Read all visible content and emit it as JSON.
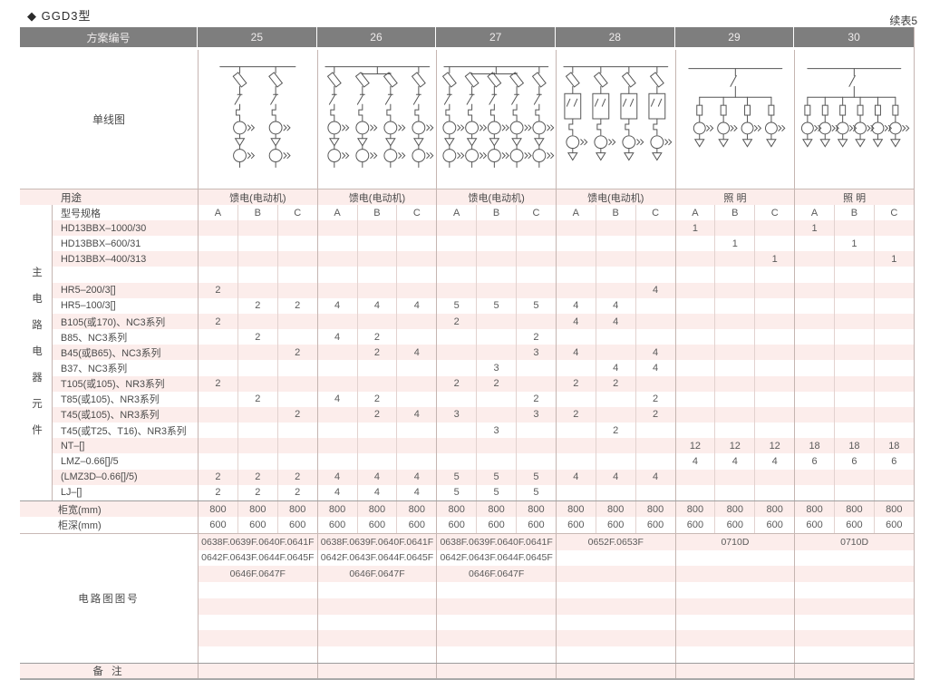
{
  "page": {
    "title": "◆ GGD3型",
    "continuation_note": "续表5"
  },
  "colors": {
    "header_bg": "#7e7e7e",
    "stripe_pink": "#fcedeb",
    "grid_line": "#c5b5b1",
    "text": "#4a4a4a"
  },
  "table": {
    "header_label": "方案编号",
    "schemes": [
      "25",
      "26",
      "27",
      "28",
      "29",
      "30"
    ],
    "diagram_row_label": "单线图",
    "diagrams": [
      {
        "scheme": "25",
        "style": "motor-feeder",
        "branches": 2
      },
      {
        "scheme": "26",
        "style": "motor-feeder",
        "branches": 4
      },
      {
        "scheme": "27",
        "style": "motor-feeder",
        "branches": 5
      },
      {
        "scheme": "28",
        "style": "contactor-feeder",
        "branches": 4
      },
      {
        "scheme": "29",
        "style": "lighting",
        "branches": 4
      },
      {
        "scheme": "30",
        "style": "lighting",
        "branches": 6
      }
    ],
    "usage_label": "用途",
    "usage_values": [
      "馈电(电动机)",
      "馈电(电动机)",
      "馈电(电动机)",
      "馈电(电动机)",
      "照 明",
      "照 明"
    ],
    "spec_label": "型号规格",
    "subcols": [
      "A",
      "B",
      "C"
    ],
    "side_label": "主电路电器元件",
    "component_rows": [
      {
        "label": "HD13BBX–1000/30",
        "values": [
          "",
          "",
          "",
          "",
          "",
          "",
          "",
          "",
          "",
          "",
          "",
          "",
          "1",
          "",
          "",
          "1",
          "",
          ""
        ]
      },
      {
        "label": "HD13BBX–600/31",
        "values": [
          "",
          "",
          "",
          "",
          "",
          "",
          "",
          "",
          "",
          "",
          "",
          "",
          "",
          "1",
          "",
          "",
          "1",
          ""
        ]
      },
      {
        "label": "HD13BBX–400/313",
        "values": [
          "",
          "",
          "",
          "",
          "",
          "",
          "",
          "",
          "",
          "",
          "",
          "",
          "",
          "",
          "1",
          "",
          "",
          "1"
        ]
      },
      {
        "label": "",
        "values": [
          "",
          "",
          "",
          "",
          "",
          "",
          "",
          "",
          "",
          "",
          "",
          "",
          "",
          "",
          "",
          "",
          "",
          ""
        ]
      },
      {
        "label": "HR5–200/3[]",
        "values": [
          "2",
          "",
          "",
          "",
          "",
          "",
          "",
          "",
          "",
          "",
          "",
          "4",
          "",
          "",
          "",
          "",
          "",
          ""
        ]
      },
      {
        "label": "HR5–100/3[]",
        "values": [
          "",
          "2",
          "2",
          "4",
          "4",
          "4",
          "5",
          "5",
          "5",
          "4",
          "4",
          "",
          "",
          "",
          "",
          "",
          "",
          ""
        ]
      },
      {
        "label": "B105(或170)、NC3系列",
        "values": [
          "2",
          "",
          "",
          "",
          "",
          "",
          "2",
          "",
          "",
          "4",
          "4",
          "",
          "",
          "",
          "",
          "",
          "",
          ""
        ]
      },
      {
        "label": "B85、NC3系列",
        "values": [
          "",
          "2",
          "",
          "4",
          "2",
          "",
          "",
          "",
          "2",
          "",
          "",
          "",
          "",
          "",
          "",
          "",
          "",
          ""
        ]
      },
      {
        "label": "B45(或B65)、NC3系列",
        "values": [
          "",
          "",
          "2",
          "",
          "2",
          "4",
          "",
          "",
          "3",
          "4",
          "",
          "4",
          "",
          "",
          "",
          "",
          "",
          ""
        ]
      },
      {
        "label": "B37、NC3系列",
        "values": [
          "",
          "",
          "",
          "",
          "",
          "",
          "",
          "3",
          "",
          "",
          "4",
          "4",
          "",
          "",
          "",
          "",
          "",
          ""
        ]
      },
      {
        "label": "T105(或105)、NR3系列",
        "values": [
          "2",
          "",
          "",
          "",
          "",
          "",
          "2",
          "2",
          "",
          "2",
          "2",
          "",
          "",
          "",
          "",
          "",
          "",
          ""
        ]
      },
      {
        "label": "T85(或105)、NR3系列",
        "values": [
          "",
          "2",
          "",
          "4",
          "2",
          "",
          "",
          "",
          "2",
          "",
          "",
          "2",
          "",
          "",
          "",
          "",
          "",
          ""
        ]
      },
      {
        "label": "T45(或105)、NR3系列",
        "values": [
          "",
          "",
          "2",
          "",
          "2",
          "4",
          "3",
          "",
          "3",
          "2",
          "",
          "2",
          "",
          "",
          "",
          "",
          "",
          ""
        ]
      },
      {
        "label": "T45(或T25、T16)、NR3系列",
        "values": [
          "",
          "",
          "",
          "",
          "",
          "",
          "",
          "3",
          "",
          "",
          "2",
          "",
          "",
          "",
          "",
          "",
          "",
          ""
        ]
      },
      {
        "label": "NT–[]",
        "values": [
          "",
          "",
          "",
          "",
          "",
          "",
          "",
          "",
          "",
          "",
          "",
          "",
          "12",
          "12",
          "12",
          "18",
          "18",
          "18"
        ]
      },
      {
        "label": "LMZ–0.66[]/5",
        "values": [
          "",
          "",
          "",
          "",
          "",
          "",
          "",
          "",
          "",
          "",
          "",
          "",
          "4",
          "4",
          "4",
          "6",
          "6",
          "6"
        ]
      },
      {
        "label": "(LMZ3D–0.66[]/5)",
        "values": [
          "2",
          "2",
          "2",
          "4",
          "4",
          "4",
          "5",
          "5",
          "5",
          "4",
          "4",
          "4",
          "",
          "",
          "",
          "",
          "",
          ""
        ]
      },
      {
        "label": "LJ–[]",
        "values": [
          "2",
          "2",
          "2",
          "4",
          "4",
          "4",
          "5",
          "5",
          "5",
          "",
          "",
          "",
          "",
          "",
          "",
          "",
          "",
          ""
        ]
      }
    ],
    "cabinet_rows": [
      {
        "label": "柜宽(mm)",
        "values": [
          "800",
          "800",
          "800",
          "800",
          "800",
          "800",
          "800",
          "800",
          "800",
          "800",
          "800",
          "800",
          "800",
          "800",
          "800",
          "800",
          "800",
          "800"
        ]
      },
      {
        "label": "柜深(mm)",
        "values": [
          "600",
          "600",
          "600",
          "600",
          "600",
          "600",
          "600",
          "600",
          "600",
          "600",
          "600",
          "600",
          "600",
          "600",
          "600",
          "600",
          "600",
          "600"
        ]
      }
    ],
    "circuit_label": "电路图图号",
    "circuit_rows": [
      [
        "0638F.0639F.0640F.0641F",
        "0638F.0639F.0640F.0641F",
        "0638F.0639F.0640F.0641F",
        "0652F.0653F",
        "0710D",
        "0710D"
      ],
      [
        "0642F.0643F.0644F.0645F",
        "0642F.0643F.0644F.0645F",
        "0642F.0643F.0644F.0645F",
        "",
        "",
        ""
      ],
      [
        "0646F.0647F",
        "0646F.0647F",
        "0646F.0647F",
        "",
        "",
        ""
      ],
      [
        "",
        "",
        "",
        "",
        "",
        ""
      ],
      [
        "",
        "",
        "",
        "",
        "",
        ""
      ],
      [
        "",
        "",
        "",
        "",
        "",
        ""
      ],
      [
        "",
        "",
        "",
        "",
        "",
        ""
      ],
      [
        "",
        "",
        "",
        "",
        "",
        ""
      ]
    ],
    "remarks_label": "备 注"
  }
}
